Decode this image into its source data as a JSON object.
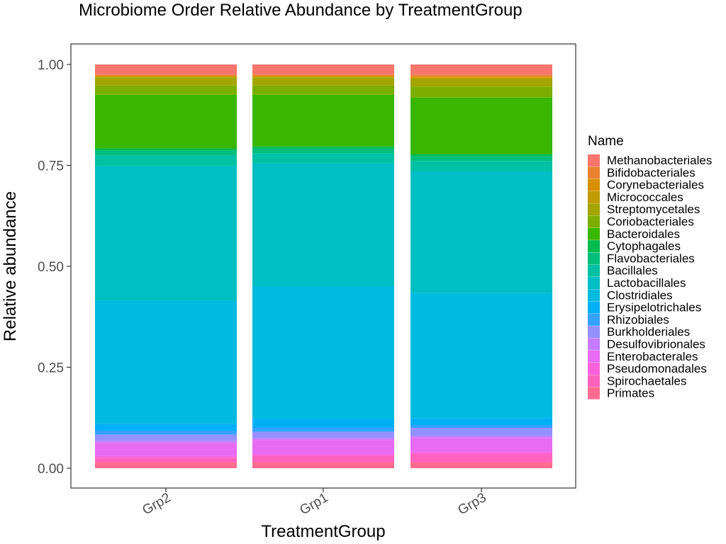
{
  "chart_data": {
    "type": "bar",
    "stacked": true,
    "title": "Microbiome Order Relative Abundance by TreatmentGroup",
    "xlabel": "TreatmentGroup",
    "ylabel": "Relative abundance",
    "ylim": [
      0,
      1
    ],
    "yticks": [
      "0.00",
      "0.25",
      "0.50",
      "0.75",
      "1.00"
    ],
    "grid": false,
    "legend_position": "right",
    "legend_title": "Name",
    "categories": [
      "Grp2",
      "Grp1",
      "Grp3"
    ],
    "series": [
      {
        "name": "Methanobacteriales",
        "color": "#F8766D",
        "values": [
          0.025,
          0.025,
          0.025
        ]
      },
      {
        "name": "Bifidobacteriales",
        "color": "#EA8331",
        "values": [
          0.003,
          0.003,
          0.005
        ]
      },
      {
        "name": "Corynebacteriales",
        "color": "#D89000",
        "values": [
          0.002,
          0.002,
          0.003
        ]
      },
      {
        "name": "Micrococcales",
        "color": "#C09B00",
        "values": [
          0.002,
          0.002,
          0.002
        ]
      },
      {
        "name": "Streptomycetales",
        "color": "#A3A500",
        "values": [
          0.02,
          0.02,
          0.02
        ]
      },
      {
        "name": "Coriobacteriales",
        "color": "#7CAE00",
        "values": [
          0.023,
          0.023,
          0.027
        ]
      },
      {
        "name": "Bacteroidales",
        "color": "#39B600",
        "values": [
          0.133,
          0.128,
          0.14
        ]
      },
      {
        "name": "Cytophagales",
        "color": "#00BB4E",
        "values": [
          0.005,
          0.005,
          0.005
        ]
      },
      {
        "name": "Flavobacteriales",
        "color": "#00BF7D",
        "values": [
          0.012,
          0.012,
          0.012
        ]
      },
      {
        "name": "Bacillales",
        "color": "#00C1A3",
        "values": [
          0.027,
          0.025,
          0.025
        ]
      },
      {
        "name": "Lactobacillales",
        "color": "#00BFC4",
        "values": [
          0.333,
          0.305,
          0.302
        ]
      },
      {
        "name": "Clostridiales",
        "color": "#00BAE0",
        "values": [
          0.305,
          0.328,
          0.31
        ]
      },
      {
        "name": "Erysipelotrichales",
        "color": "#00B0F6",
        "values": [
          0.017,
          0.022,
          0.017
        ]
      },
      {
        "name": "Rhizobiales",
        "color": "#35A2FF",
        "values": [
          0.01,
          0.01,
          0.007
        ]
      },
      {
        "name": "Burkholderiales",
        "color": "#9590FF",
        "values": [
          0.015,
          0.015,
          0.02
        ]
      },
      {
        "name": "Desulfovibrionales",
        "color": "#C77CFF",
        "values": [
          0.005,
          0.005,
          0.005
        ]
      },
      {
        "name": "Enterobacterales",
        "color": "#E76BF3",
        "values": [
          0.033,
          0.035,
          0.035
        ]
      },
      {
        "name": "Pseudomonadales",
        "color": "#FA62DB",
        "values": [
          0.005,
          0.005,
          0.005
        ]
      },
      {
        "name": "Spirochaetales",
        "color": "#FF62BC",
        "values": [
          0.01,
          0.015,
          0.02
        ]
      },
      {
        "name": "Primates",
        "color": "#FF6C91",
        "values": [
          0.015,
          0.015,
          0.015
        ]
      }
    ]
  }
}
